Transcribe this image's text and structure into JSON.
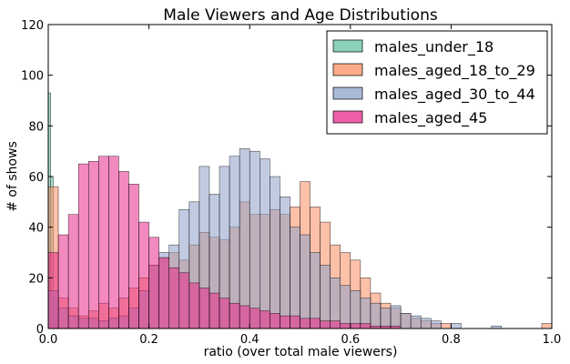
{
  "chart_data": {
    "type": "histogram",
    "title": "Male Viewers and Age Distributions",
    "xlabel": "ratio (over total male viewers)",
    "ylabel": "# of shows",
    "xlim": [
      0.0,
      1.0
    ],
    "ylim": [
      0,
      120
    ],
    "xticks": [
      "0.0",
      "0.2",
      "0.4",
      "0.6",
      "0.8",
      "1.0"
    ],
    "yticks": [
      "0",
      "20",
      "40",
      "60",
      "80",
      "100",
      "120"
    ],
    "grid": false,
    "legend_position": "top-right",
    "bin_width": 0.02,
    "series": [
      {
        "name": "males_under_18",
        "color": "#66c2a5",
        "bins": [
          [
            0.0,
            93
          ],
          [
            0.005,
            60
          ],
          [
            0.01,
            12
          ]
        ]
      },
      {
        "name": "males_aged_18_to_29",
        "color": "#fc8d62",
        "bins": [
          [
            0.0,
            56
          ],
          [
            0.02,
            12
          ],
          [
            0.04,
            8
          ],
          [
            0.06,
            5
          ],
          [
            0.08,
            7
          ],
          [
            0.1,
            10
          ],
          [
            0.12,
            8
          ],
          [
            0.14,
            12
          ],
          [
            0.16,
            16
          ],
          [
            0.18,
            20
          ],
          [
            0.2,
            25
          ],
          [
            0.22,
            28
          ],
          [
            0.24,
            30
          ],
          [
            0.26,
            27
          ],
          [
            0.28,
            33
          ],
          [
            0.3,
            38
          ],
          [
            0.32,
            36
          ],
          [
            0.34,
            35
          ],
          [
            0.36,
            40
          ],
          [
            0.38,
            50
          ],
          [
            0.4,
            45
          ],
          [
            0.42,
            45
          ],
          [
            0.44,
            47
          ],
          [
            0.46,
            45
          ],
          [
            0.48,
            48
          ],
          [
            0.5,
            58
          ],
          [
            0.52,
            48
          ],
          [
            0.54,
            42
          ],
          [
            0.56,
            33
          ],
          [
            0.58,
            30
          ],
          [
            0.6,
            27
          ],
          [
            0.62,
            20
          ],
          [
            0.64,
            14
          ],
          [
            0.66,
            10
          ],
          [
            0.68,
            8
          ],
          [
            0.7,
            6
          ],
          [
            0.72,
            4
          ],
          [
            0.74,
            3
          ],
          [
            0.76,
            2
          ],
          [
            0.78,
            2
          ],
          [
            0.98,
            2
          ]
        ]
      },
      {
        "name": "males_aged_30_to_44",
        "color": "#8da0cb",
        "bins": [
          [
            0.0,
            15
          ],
          [
            0.02,
            8
          ],
          [
            0.04,
            5
          ],
          [
            0.06,
            4
          ],
          [
            0.08,
            4
          ],
          [
            0.1,
            3
          ],
          [
            0.12,
            4
          ],
          [
            0.14,
            5
          ],
          [
            0.16,
            8
          ],
          [
            0.18,
            15
          ],
          [
            0.2,
            25
          ],
          [
            0.22,
            30
          ],
          [
            0.24,
            33
          ],
          [
            0.26,
            47
          ],
          [
            0.28,
            50
          ],
          [
            0.3,
            64
          ],
          [
            0.32,
            53
          ],
          [
            0.34,
            64
          ],
          [
            0.36,
            68
          ],
          [
            0.38,
            71
          ],
          [
            0.4,
            70
          ],
          [
            0.42,
            67
          ],
          [
            0.44,
            60
          ],
          [
            0.46,
            52
          ],
          [
            0.48,
            40
          ],
          [
            0.5,
            37
          ],
          [
            0.52,
            30
          ],
          [
            0.54,
            25
          ],
          [
            0.56,
            20
          ],
          [
            0.58,
            17
          ],
          [
            0.6,
            15
          ],
          [
            0.62,
            12
          ],
          [
            0.64,
            10
          ],
          [
            0.66,
            8
          ],
          [
            0.68,
            9
          ],
          [
            0.7,
            6
          ],
          [
            0.72,
            5
          ],
          [
            0.74,
            4
          ],
          [
            0.76,
            3
          ],
          [
            0.8,
            2
          ],
          [
            0.88,
            1
          ]
        ]
      },
      {
        "name": "males_aged_45",
        "color": "#e7298a",
        "bins": [
          [
            0.0,
            30
          ],
          [
            0.02,
            37
          ],
          [
            0.04,
            45
          ],
          [
            0.06,
            65
          ],
          [
            0.08,
            66
          ],
          [
            0.1,
            68
          ],
          [
            0.12,
            68
          ],
          [
            0.14,
            62
          ],
          [
            0.16,
            57
          ],
          [
            0.18,
            42
          ],
          [
            0.2,
            36
          ],
          [
            0.22,
            28
          ],
          [
            0.24,
            24
          ],
          [
            0.26,
            22
          ],
          [
            0.28,
            18
          ],
          [
            0.3,
            16
          ],
          [
            0.32,
            14
          ],
          [
            0.34,
            12
          ],
          [
            0.36,
            10
          ],
          [
            0.38,
            9
          ],
          [
            0.4,
            8
          ],
          [
            0.42,
            7
          ],
          [
            0.44,
            6
          ],
          [
            0.46,
            5
          ],
          [
            0.48,
            5
          ],
          [
            0.5,
            4
          ],
          [
            0.52,
            4
          ],
          [
            0.54,
            3
          ],
          [
            0.56,
            3
          ],
          [
            0.58,
            2
          ],
          [
            0.6,
            2
          ],
          [
            0.62,
            2
          ],
          [
            0.64,
            1
          ],
          [
            0.66,
            1
          ],
          [
            0.68,
            1
          ]
        ]
      }
    ]
  }
}
